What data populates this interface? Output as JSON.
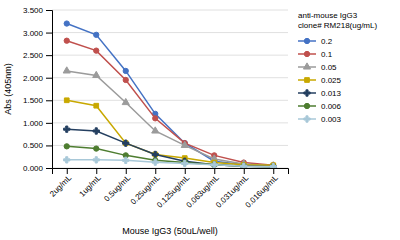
{
  "chart_data": {
    "type": "line",
    "x_label": "Mouse IgG3 (50uL/well)",
    "y_label": "Abs (405nm)",
    "legend_title": "anti-mouse IgG3\nclone# RM218(ug/mL)",
    "categories": [
      "2ug/mL",
      "1ug/mL",
      "0.5ug/mL",
      "0.25ug/mL",
      "0.125ug/mL",
      "0.063ug/mL",
      "0.031ug/mL",
      "0.016ug/mL"
    ],
    "ylim": [
      0,
      3.5
    ],
    "yticks": [
      {
        "value": 0.0,
        "label": "0.000"
      },
      {
        "value": 0.5,
        "label": "0.500"
      },
      {
        "value": 1.0,
        "label": "1.000"
      },
      {
        "value": 1.5,
        "label": "1.500"
      },
      {
        "value": 2.0,
        "label": "2.000"
      },
      {
        "value": 2.5,
        "label": "2.500"
      },
      {
        "value": 3.0,
        "label": "3.000"
      },
      {
        "value": 3.5,
        "label": "3.500"
      }
    ],
    "grid": true,
    "legend": "right",
    "series": [
      {
        "name": "0.2",
        "color": "#4472C4",
        "marker": "circle",
        "values": [
          3.2,
          2.95,
          2.15,
          1.2,
          0.55,
          0.15,
          0.07,
          0.05
        ]
      },
      {
        "name": "0.1",
        "color": "#C0504D",
        "marker": "circle",
        "values": [
          2.82,
          2.6,
          1.95,
          1.1,
          0.55,
          0.28,
          0.12,
          0.06
        ]
      },
      {
        "name": "0.05",
        "color": "#9B9B9B",
        "marker": "triangle",
        "values": [
          2.15,
          2.05,
          1.45,
          0.82,
          0.5,
          0.2,
          0.09,
          0.05
        ]
      },
      {
        "name": "0.025",
        "color": "#C8A800",
        "marker": "square",
        "values": [
          1.5,
          1.38,
          0.55,
          0.3,
          0.22,
          0.12,
          0.07,
          0.06
        ]
      },
      {
        "name": "0.013",
        "color": "#243F60",
        "marker": "plus",
        "values": [
          0.86,
          0.82,
          0.55,
          0.3,
          0.15,
          0.07,
          0.04,
          0.03
        ]
      },
      {
        "name": "0.006",
        "color": "#4E7D30",
        "marker": "circle",
        "values": [
          0.48,
          0.43,
          0.28,
          0.17,
          0.12,
          0.07,
          0.04,
          0.03
        ]
      },
      {
        "name": "0.003",
        "color": "#A8C8D8",
        "marker": "plus",
        "values": [
          0.18,
          0.18,
          0.17,
          0.13,
          0.1,
          0.07,
          0.04,
          0.03
        ]
      }
    ]
  }
}
